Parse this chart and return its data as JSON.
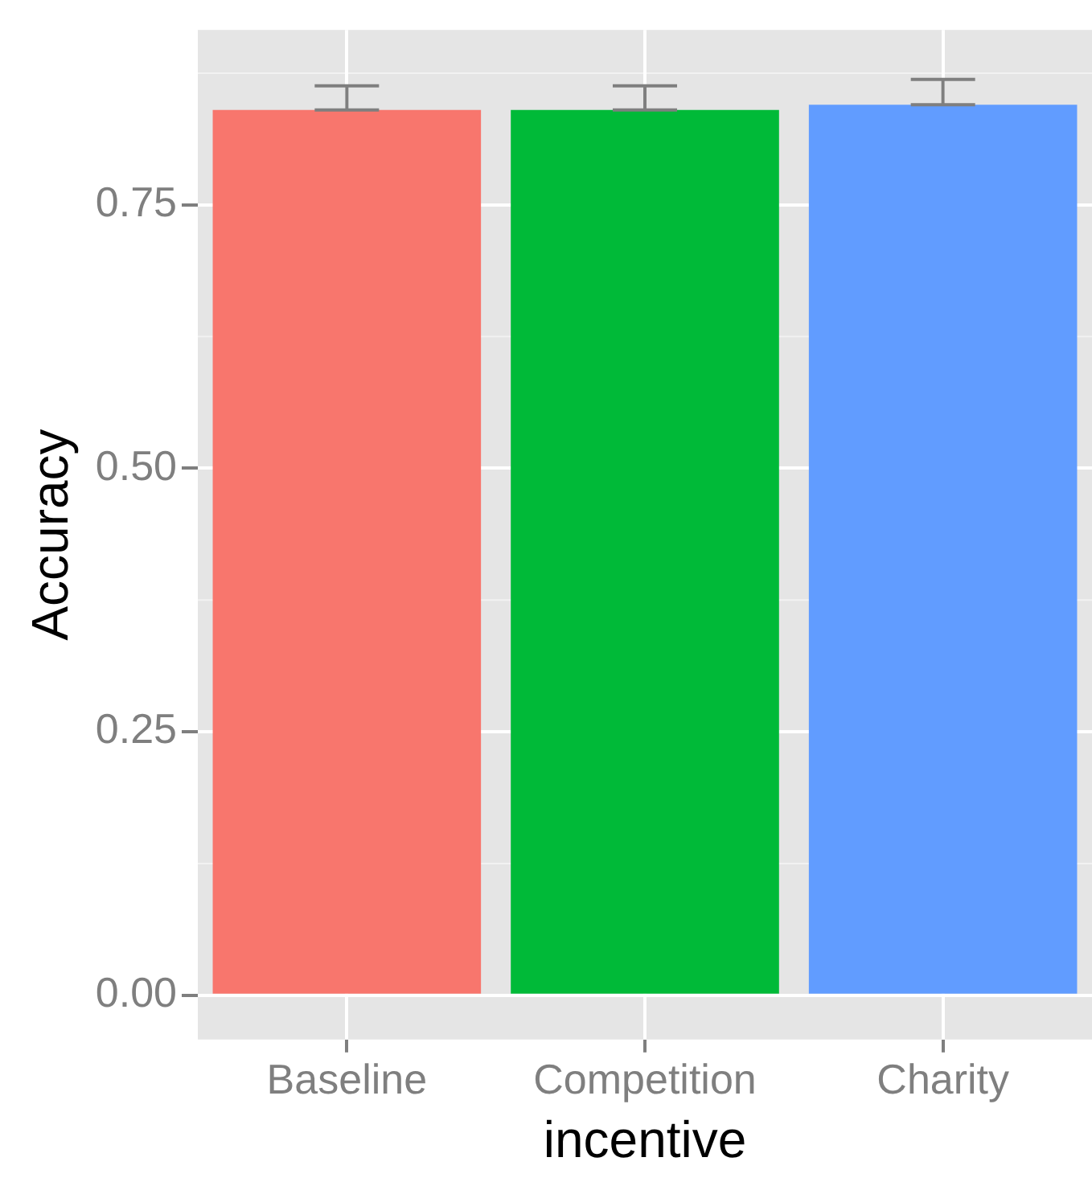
{
  "chart_data": {
    "type": "bar",
    "xlabel": "incentive",
    "ylabel": "Accuracy",
    "categories": [
      "Baseline",
      "Competition",
      "Charity"
    ],
    "values": [
      0.84,
      0.84,
      0.845
    ],
    "colors": [
      "#f8766d",
      "#00ba38",
      "#619cff"
    ],
    "errors": [
      [
        0.84,
        0.863
      ],
      [
        0.84,
        0.863
      ],
      [
        0.845,
        0.869
      ]
    ],
    "ylim": [
      -0.042,
      0.916
    ],
    "yticks": [
      {
        "value": 0,
        "label": "0.00"
      },
      {
        "value": 0.25,
        "label": "0.25"
      },
      {
        "value": 0.5,
        "label": "0.50"
      },
      {
        "value": 0.75,
        "label": "0.75"
      }
    ],
    "grid": true,
    "legend": false
  }
}
